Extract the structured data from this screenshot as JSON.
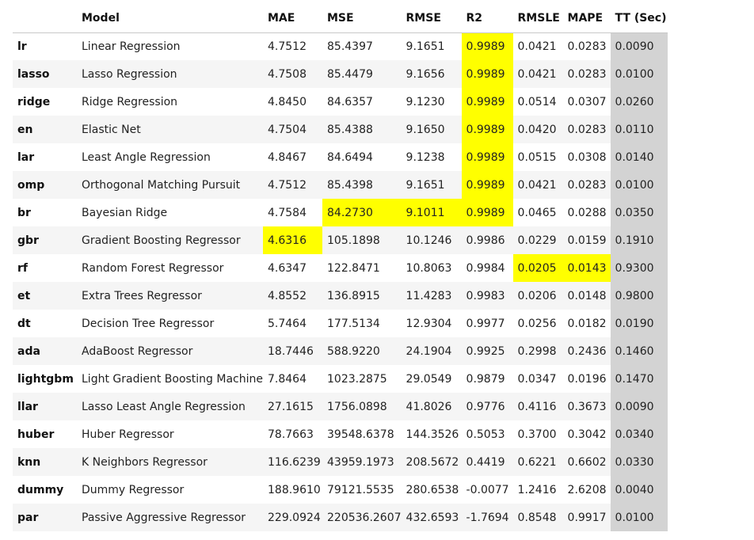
{
  "columns": [
    "",
    "Model",
    "MAE",
    "MSE",
    "RMSE",
    "R2",
    "RMSLE",
    "MAPE",
    "TT (Sec)"
  ],
  "rows": [
    [
      "lr",
      "Linear Regression",
      "4.7512",
      "85.4397",
      "9.1651",
      "0.9989",
      "0.0421",
      "0.0283",
      "0.0090"
    ],
    [
      "lasso",
      "Lasso Regression",
      "4.7508",
      "85.4479",
      "9.1656",
      "0.9989",
      "0.0421",
      "0.0283",
      "0.0100"
    ],
    [
      "ridge",
      "Ridge Regression",
      "4.8450",
      "84.6357",
      "9.1230",
      "0.9989",
      "0.0514",
      "0.0307",
      "0.0260"
    ],
    [
      "en",
      "Elastic Net",
      "4.7504",
      "85.4388",
      "9.1650",
      "0.9989",
      "0.0420",
      "0.0283",
      "0.0110"
    ],
    [
      "lar",
      "Least Angle Regression",
      "4.8467",
      "84.6494",
      "9.1238",
      "0.9989",
      "0.0515",
      "0.0308",
      "0.0140"
    ],
    [
      "omp",
      "Orthogonal Matching Pursuit",
      "4.7512",
      "85.4398",
      "9.1651",
      "0.9989",
      "0.0421",
      "0.0283",
      "0.0100"
    ],
    [
      "br",
      "Bayesian Ridge",
      "4.7584",
      "84.2730",
      "9.1011",
      "0.9989",
      "0.0465",
      "0.0288",
      "0.0350"
    ],
    [
      "gbr",
      "Gradient Boosting Regressor",
      "4.6316",
      "105.1898",
      "10.1246",
      "0.9986",
      "0.0229",
      "0.0159",
      "0.1910"
    ],
    [
      "rf",
      "Random Forest Regressor",
      "4.6347",
      "122.8471",
      "10.8063",
      "0.9984",
      "0.0205",
      "0.0143",
      "0.9300"
    ],
    [
      "et",
      "Extra Trees Regressor",
      "4.8552",
      "136.8915",
      "11.4283",
      "0.9983",
      "0.0206",
      "0.0148",
      "0.9800"
    ],
    [
      "dt",
      "Decision Tree Regressor",
      "5.7464",
      "177.5134",
      "12.9304",
      "0.9977",
      "0.0256",
      "0.0182",
      "0.0190"
    ],
    [
      "ada",
      "AdaBoost Regressor",
      "18.7446",
      "588.9220",
      "24.1904",
      "0.9925",
      "0.2998",
      "0.2436",
      "0.1460"
    ],
    [
      "lightgbm",
      "Light Gradient Boosting Machine",
      "7.8464",
      "1023.2875",
      "29.0549",
      "0.9879",
      "0.0347",
      "0.0196",
      "0.1470"
    ],
    [
      "llar",
      "Lasso Least Angle Regression",
      "27.1615",
      "1756.0898",
      "41.8026",
      "0.9776",
      "0.4116",
      "0.3673",
      "0.0090"
    ],
    [
      "huber",
      "Huber Regressor",
      "78.7663",
      "39548.6378",
      "144.3526",
      "0.5053",
      "0.3700",
      "0.3042",
      "0.0340"
    ],
    [
      "knn",
      "K Neighbors Regressor",
      "116.6239",
      "43959.1973",
      "208.5672",
      "0.4419",
      "0.6221",
      "0.6602",
      "0.0330"
    ],
    [
      "dummy",
      "Dummy Regressor",
      "188.9610",
      "79121.5535",
      "280.6538",
      "-0.0077",
      "1.2416",
      "2.6208",
      "0.0040"
    ],
    [
      "par",
      "Passive Aggressive Regressor",
      "229.0924",
      "220536.2607",
      "432.6593",
      "-1.7694",
      "0.8548",
      "0.9917",
      "0.0100"
    ]
  ],
  "highlight": [
    [
      0,
      5
    ],
    [
      1,
      5
    ],
    [
      2,
      5
    ],
    [
      3,
      5
    ],
    [
      4,
      5
    ],
    [
      5,
      5
    ],
    [
      6,
      3
    ],
    [
      6,
      4
    ],
    [
      6,
      5
    ],
    [
      7,
      2
    ],
    [
      8,
      6
    ],
    [
      8,
      7
    ]
  ],
  "colors": {
    "highlight": "#ffff00",
    "tt_column": "#d3d3d3",
    "stripe": "#f5f5f5"
  }
}
